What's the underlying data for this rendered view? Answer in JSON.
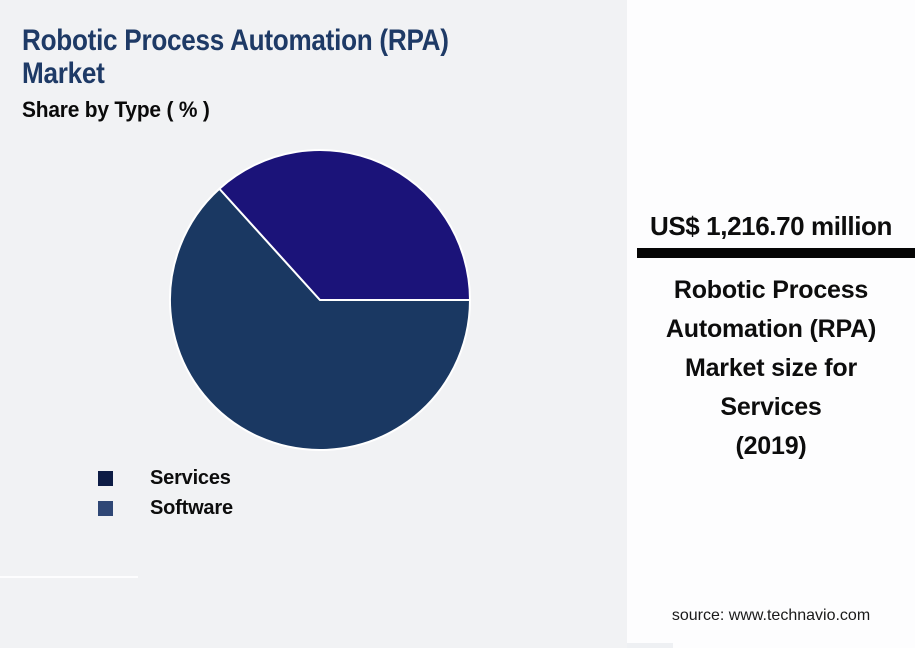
{
  "header": {
    "title": "Robotic Process Automation (RPA)\nMarket",
    "subtitle": "Share by Type ( % )",
    "title_color": "#1e3a66"
  },
  "chart_data": {
    "type": "pie",
    "title": "Robotic Process Automation (RPA) Market",
    "subtitle": "Share by Type ( % )",
    "unit": "%",
    "start_angle_deg": 0,
    "direction": "clockwise",
    "separator_color": "#ffffff",
    "legend_position": "bottom-left",
    "slices": [
      {
        "label": "Services",
        "value": 63.3,
        "color": "#1a3862",
        "legend_color": "#0d1c45"
      },
      {
        "label": "Software",
        "value": 36.7,
        "color": "#1b1379",
        "legend_color": "#2f4775"
      }
    ]
  },
  "sidebar": {
    "stat_value": "US$ 1,216.70 million",
    "stat_description": "Robotic Process\nAutomation (RPA)\nMarket size for\nServices\n(2019)",
    "source": "source: www.technavio.com",
    "divider_color": "#050505",
    "background": "#fdfdfe"
  },
  "colors": {
    "page_background": "#f1f2f4",
    "text": "#0d0d0d"
  }
}
